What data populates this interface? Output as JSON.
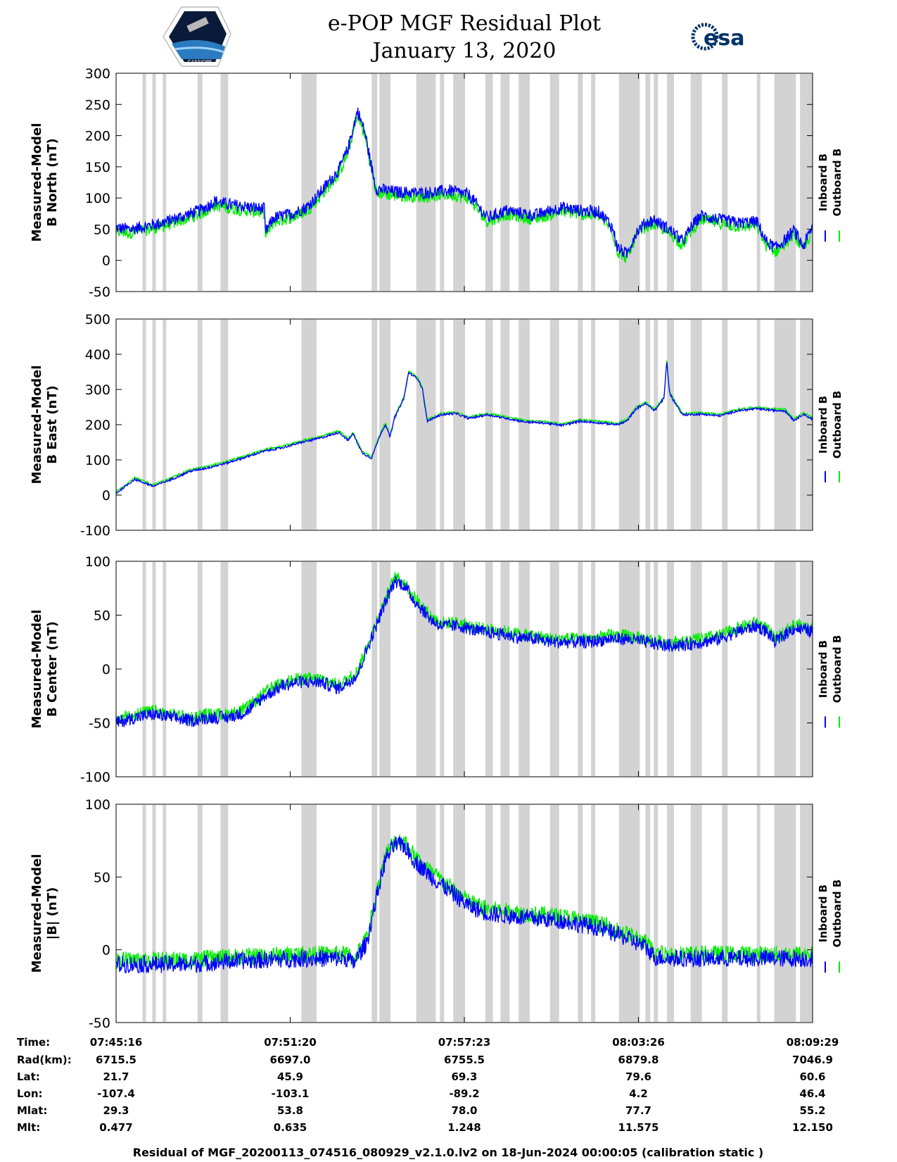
{
  "header": {
    "title_line1": "e-POP MGF Residual Plot",
    "title_line2": "January 13, 2020",
    "mission_logo_text": "CASSIOPE",
    "agency_logo_text": "esa",
    "agency_color": "#003366"
  },
  "colors": {
    "inboard": "#0000ff",
    "outboard": "#00ee00",
    "gap": "#d3d3d3"
  },
  "legend": {
    "inboard": "Inboard B",
    "outboard": "Outboard B"
  },
  "chart_data": [
    {
      "type": "line",
      "id": "bnorth",
      "ylabel_line1": "Measured-Model",
      "ylabel_line2": "B North (nT)",
      "ylim": [
        -50,
        300
      ],
      "yticks": [
        "300",
        "250",
        "200",
        "150",
        "100",
        "50",
        "0",
        "-50"
      ],
      "ytick_values": [
        300,
        250,
        200,
        150,
        100,
        50,
        0,
        -50
      ],
      "noise": 10,
      "green_offset": -6,
      "keyframes": [
        [
          0,
          52
        ],
        [
          1.5,
          50
        ],
        [
          5,
          60
        ],
        [
          9,
          80
        ],
        [
          10,
          88
        ],
        [
          10.6,
          95
        ],
        [
          12,
          90
        ],
        [
          16,
          82
        ],
        [
          16.05,
          45
        ],
        [
          17,
          68
        ],
        [
          19,
          75
        ],
        [
          20.5,
          85
        ],
        [
          21.5,
          100
        ],
        [
          22.5,
          118
        ],
        [
          24,
          145
        ],
        [
          25,
          180
        ],
        [
          26,
          240
        ],
        [
          26.8,
          205
        ],
        [
          27.5,
          150
        ],
        [
          28,
          115
        ],
        [
          30,
          110
        ],
        [
          33,
          108
        ],
        [
          36,
          112
        ],
        [
          38,
          105
        ],
        [
          40,
          68
        ],
        [
          42,
          80
        ],
        [
          45,
          72
        ],
        [
          48,
          85
        ],
        [
          50,
          80
        ],
        [
          52,
          78
        ],
        [
          53,
          62
        ],
        [
          53.5,
          50
        ],
        [
          54,
          20
        ],
        [
          55,
          10
        ],
        [
          56,
          45
        ],
        [
          57,
          60
        ],
        [
          58,
          65
        ],
        [
          60,
          45
        ],
        [
          61,
          30
        ],
        [
          62,
          55
        ],
        [
          63,
          72
        ],
        [
          65,
          65
        ],
        [
          67,
          60
        ],
        [
          69,
          62
        ],
        [
          70,
          30
        ],
        [
          71,
          20
        ],
        [
          72,
          32
        ],
        [
          73,
          48
        ],
        [
          74,
          22
        ],
        [
          75,
          55
        ]
      ]
    },
    {
      "type": "line",
      "id": "beast",
      "ylabel_line1": "Measured-Model",
      "ylabel_line2": "B East (nT)",
      "ylim": [
        -100,
        500
      ],
      "yticks": [
        "500",
        "400",
        "300",
        "200",
        "100",
        "0",
        "-100"
      ],
      "ytick_values": [
        500,
        400,
        300,
        200,
        100,
        0,
        -100
      ],
      "noise": 3,
      "green_offset": 4,
      "keyframes": [
        [
          0,
          5
        ],
        [
          2,
          45
        ],
        [
          4,
          25
        ],
        [
          6,
          45
        ],
        [
          8,
          68
        ],
        [
          10,
          78
        ],
        [
          12,
          92
        ],
        [
          14,
          108
        ],
        [
          16,
          125
        ],
        [
          18,
          135
        ],
        [
          20,
          150
        ],
        [
          22,
          162
        ],
        [
          24,
          178
        ],
        [
          25,
          155
        ],
        [
          25.5,
          175
        ],
        [
          26.5,
          120
        ],
        [
          27.5,
          105
        ],
        [
          28.5,
          175
        ],
        [
          29,
          200
        ],
        [
          29.5,
          165
        ],
        [
          30,
          220
        ],
        [
          31,
          275
        ],
        [
          31.5,
          348
        ],
        [
          32.5,
          330
        ],
        [
          33,
          300
        ],
        [
          33.5,
          210
        ],
        [
          35,
          228
        ],
        [
          36.5,
          232
        ],
        [
          38,
          218
        ],
        [
          40,
          228
        ],
        [
          42,
          218
        ],
        [
          44,
          208
        ],
        [
          46,
          205
        ],
        [
          48,
          198
        ],
        [
          50,
          210
        ],
        [
          52,
          205
        ],
        [
          54,
          200
        ],
        [
          55,
          210
        ],
        [
          56,
          245
        ],
        [
          57,
          260
        ],
        [
          58,
          240
        ],
        [
          59,
          275
        ],
        [
          59.3,
          380
        ],
        [
          59.6,
          290
        ],
        [
          60,
          270
        ],
        [
          61,
          228
        ],
        [
          63,
          230
        ],
        [
          65,
          225
        ],
        [
          67,
          240
        ],
        [
          69,
          245
        ],
        [
          71,
          240
        ],
        [
          72,
          240
        ],
        [
          73,
          212
        ],
        [
          74,
          230
        ],
        [
          75,
          215
        ]
      ]
    },
    {
      "type": "line",
      "id": "bcenter",
      "ylabel_line1": "Measured-Model",
      "ylabel_line2": "B Center (nT)",
      "ylim": [
        -100,
        100
      ],
      "yticks": [
        "100",
        "50",
        "0",
        "-50",
        "-100"
      ],
      "ytick_values": [
        100,
        50,
        0,
        -50,
        -100
      ],
      "noise": 6,
      "green_offset": 3,
      "keyframes": [
        [
          0,
          -50
        ],
        [
          2,
          -45
        ],
        [
          4,
          -42
        ],
        [
          6,
          -45
        ],
        [
          8,
          -48
        ],
        [
          10,
          -45
        ],
        [
          12,
          -45
        ],
        [
          14,
          -40
        ],
        [
          16,
          -25
        ],
        [
          18,
          -15
        ],
        [
          20,
          -12
        ],
        [
          22,
          -12
        ],
        [
          24,
          -18
        ],
        [
          25,
          -12
        ],
        [
          26,
          -5
        ],
        [
          27,
          18
        ],
        [
          28,
          40
        ],
        [
          29,
          62
        ],
        [
          30,
          82
        ],
        [
          31,
          78
        ],
        [
          32,
          65
        ],
        [
          34,
          45
        ],
        [
          35,
          40
        ],
        [
          37,
          40
        ],
        [
          39,
          35
        ],
        [
          41,
          33
        ],
        [
          43,
          30
        ],
        [
          45,
          28
        ],
        [
          47,
          25
        ],
        [
          49,
          25
        ],
        [
          51,
          25
        ],
        [
          53,
          28
        ],
        [
          55,
          28
        ],
        [
          57,
          25
        ],
        [
          59,
          22
        ],
        [
          61,
          22
        ],
        [
          63,
          25
        ],
        [
          65,
          28
        ],
        [
          67,
          35
        ],
        [
          69,
          40
        ],
        [
          70,
          35
        ],
        [
          71,
          25
        ],
        [
          72,
          32
        ],
        [
          73,
          38
        ],
        [
          75,
          35
        ]
      ]
    },
    {
      "type": "line",
      "id": "bmag",
      "ylabel_line1": "Measured-Model",
      "ylabel_line2": "|B| (nT)",
      "ylim": [
        -50,
        100
      ],
      "yticks": [
        "100",
        "50",
        "0",
        "-50"
      ],
      "ytick_values": [
        100,
        50,
        0,
        -50
      ],
      "noise": 6,
      "green_offset": 3,
      "keyframes": [
        [
          0,
          -10
        ],
        [
          4,
          -10
        ],
        [
          8,
          -10
        ],
        [
          12,
          -8
        ],
        [
          16,
          -7
        ],
        [
          20,
          -6
        ],
        [
          22,
          -6
        ],
        [
          25,
          -6
        ],
        [
          25.5,
          -10
        ],
        [
          27,
          5
        ],
        [
          28,
          35
        ],
        [
          29,
          62
        ],
        [
          30,
          72
        ],
        [
          31,
          72
        ],
        [
          32,
          62
        ],
        [
          34,
          50
        ],
        [
          36,
          40
        ],
        [
          38,
          30
        ],
        [
          40,
          25
        ],
        [
          44,
          22
        ],
        [
          48,
          20
        ],
        [
          52,
          15
        ],
        [
          55,
          8
        ],
        [
          57,
          2
        ],
        [
          58,
          -5
        ],
        [
          60,
          -6
        ],
        [
          65,
          -6
        ],
        [
          70,
          -6
        ],
        [
          75,
          -6
        ]
      ]
    }
  ],
  "x_axis": {
    "duration_min": 24.217,
    "tick_fractions": [
      0,
      0.25,
      0.5,
      0.75,
      1
    ]
  },
  "gap_bands": [
    [
      0.038,
      0.043
    ],
    [
      0.052,
      0.057
    ],
    [
      0.067,
      0.072
    ],
    [
      0.117,
      0.124
    ],
    [
      0.15,
      0.161
    ],
    [
      0.266,
      0.288
    ],
    [
      0.367,
      0.375
    ],
    [
      0.378,
      0.394
    ],
    [
      0.431,
      0.459
    ],
    [
      0.465,
      0.471
    ],
    [
      0.484,
      0.501
    ],
    [
      0.53,
      0.541
    ],
    [
      0.552,
      0.565
    ],
    [
      0.578,
      0.594
    ],
    [
      0.623,
      0.636
    ],
    [
      0.663,
      0.67
    ],
    [
      0.682,
      0.688
    ],
    [
      0.722,
      0.752
    ],
    [
      0.76,
      0.767
    ],
    [
      0.772,
      0.778
    ],
    [
      0.791,
      0.801
    ],
    [
      0.825,
      0.841
    ],
    [
      0.87,
      0.878
    ],
    [
      0.92,
      0.925
    ],
    [
      0.945,
      0.976
    ],
    [
      0.982,
      1.0
    ]
  ],
  "info_table": {
    "labels": [
      "Time:",
      "Rad(km):",
      "Lat:",
      "Lon:",
      "Mlat:",
      "Mlt:"
    ],
    "columns": [
      [
        "07:45:16",
        "6715.5",
        "21.7",
        "-107.4",
        "29.3",
        "0.477"
      ],
      [
        "07:51:20",
        "6697.0",
        "45.9",
        "-103.1",
        "53.8",
        "0.635"
      ],
      [
        "07:57:23",
        "6755.5",
        "69.3",
        "-89.2",
        "78.0",
        "1.248"
      ],
      [
        "08:03:26",
        "6879.8",
        "79.6",
        "4.2",
        "77.7",
        "11.575"
      ],
      [
        "08:09:29",
        "7046.9",
        "60.6",
        "46.4",
        "55.2",
        "12.150"
      ]
    ]
  },
  "footer": "Residual of MGF_20200113_074516_080929_v2.1.0.lv2 on 18-Jun-2024 00:00:05 (calibration static )"
}
